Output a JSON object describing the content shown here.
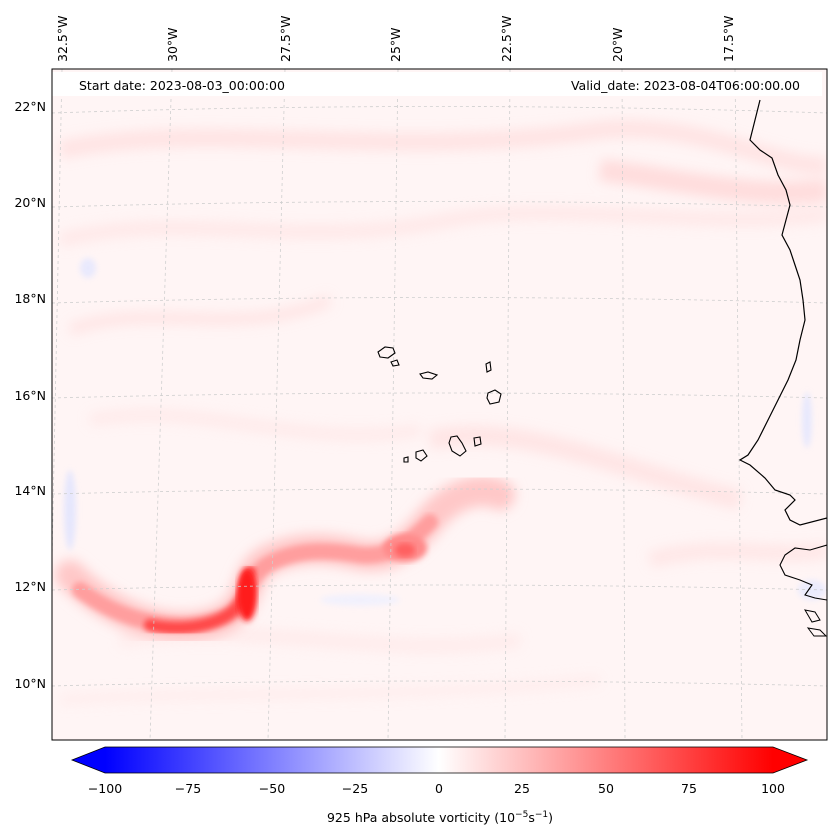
{
  "map": {
    "start_date": "Start date: 2023-08-03_00:00:00",
    "valid_date": "Valid_date: 2023-08-04T06:00:00.00",
    "lon_labels": [
      "32.5°W",
      "30°W",
      "27.5°W",
      "25°W",
      "22.5°W",
      "20°W",
      "17.5°W"
    ],
    "lat_labels": [
      "22°N",
      "20°N",
      "18°N",
      "16°N",
      "14°N",
      "12°N",
      "10°N"
    ],
    "field": "925 hPa absolute vorticity",
    "units_prefix": "(10",
    "units_exp1": "−5",
    "units_mid": "s",
    "units_exp2": "−1",
    "units_suffix": ")"
  },
  "colorbar": {
    "ticks": [
      "−100",
      "−75",
      "−50",
      "−25",
      "0",
      "25",
      "50",
      "75",
      "100"
    ],
    "min": -100,
    "max": 100,
    "colors": {
      "negative": "#0000ff",
      "zero": "#ffffff",
      "positive": "#ff0000"
    }
  },
  "style": {
    "coastline": "#000000",
    "grid": "#cccccc",
    "background_tint": "#fff4f4"
  }
}
